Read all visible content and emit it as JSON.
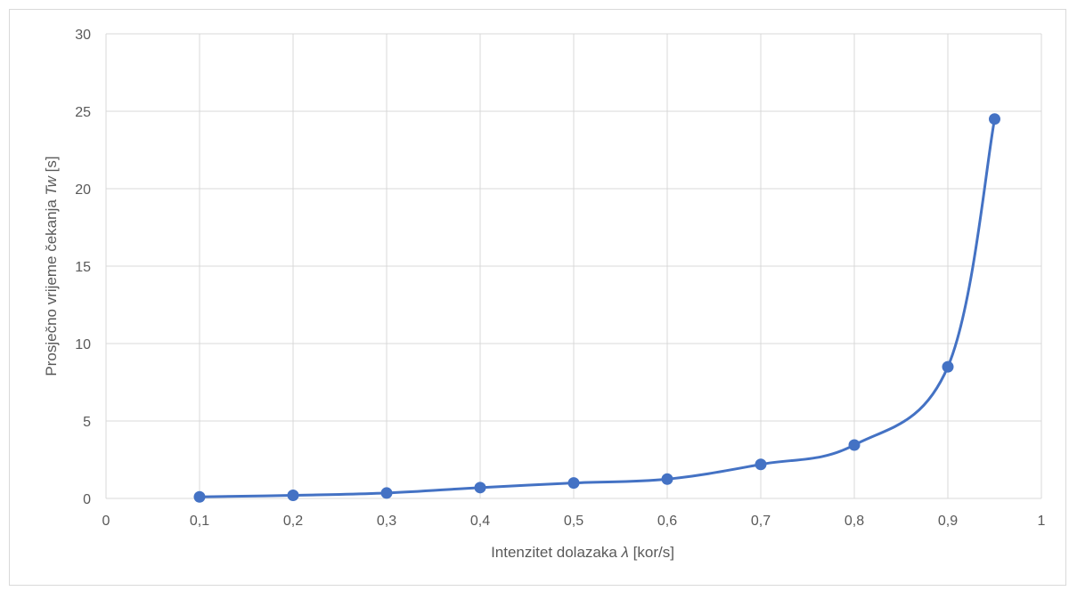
{
  "chart_data": {
    "type": "scatter",
    "title": "",
    "xlabel_parts": {
      "prefix": "Intenzitet dolazaka ",
      "symbol": "λ",
      "suffix": " [kor/s]"
    },
    "ylabel_parts": {
      "prefix": "Prosječno vrijeme čekanja ",
      "symbol": "Tw",
      "suffix": " [s]"
    },
    "xlim": [
      0,
      1
    ],
    "ylim": [
      0,
      30
    ],
    "x_ticks": [
      "0",
      "0,1",
      "0,2",
      "0,3",
      "0,4",
      "0,5",
      "0,6",
      "0,7",
      "0,8",
      "0,9",
      "1"
    ],
    "y_ticks": [
      "0",
      "5",
      "10",
      "15",
      "20",
      "25",
      "30"
    ],
    "x_tick_values": [
      0,
      0.1,
      0.2,
      0.3,
      0.4,
      0.5,
      0.6,
      0.7,
      0.8,
      0.9,
      1
    ],
    "y_tick_values": [
      0,
      5,
      10,
      15,
      20,
      25,
      30
    ],
    "grid": true,
    "smooth_lines": true,
    "series": [
      {
        "color": "#4472c4",
        "x": [
          0.1,
          0.2,
          0.3,
          0.4,
          0.5,
          0.6,
          0.7,
          0.8,
          0.9,
          0.95
        ],
        "y": [
          0.1,
          0.2,
          0.35,
          0.7,
          1.0,
          1.25,
          2.2,
          3.45,
          8.5,
          24.5
        ]
      }
    ]
  }
}
